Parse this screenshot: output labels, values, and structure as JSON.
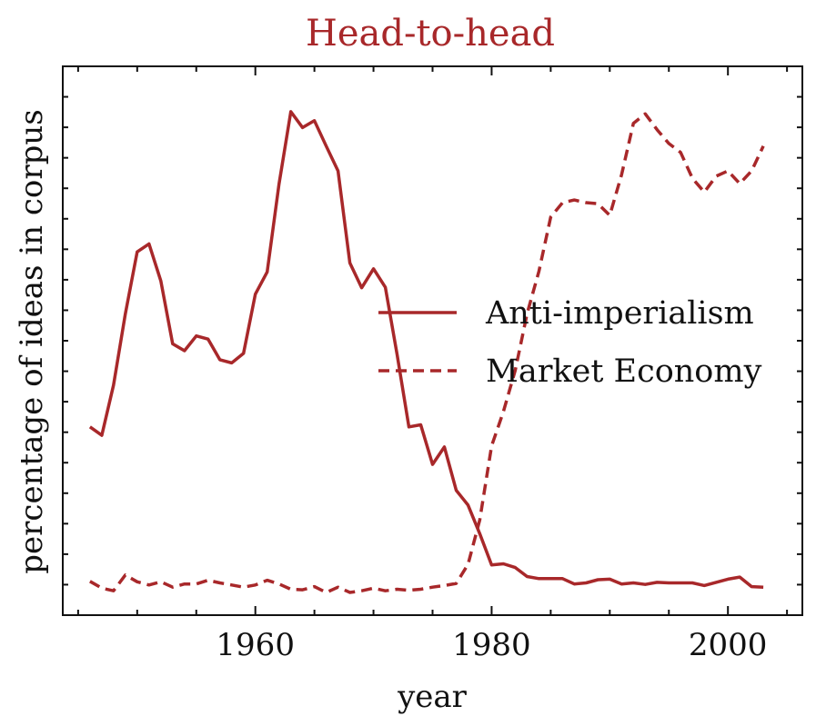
{
  "chart_data": {
    "type": "line",
    "title": "Head-to-head",
    "xlabel": "year",
    "ylabel": "percentage of ideas in corpus",
    "xlim": [
      1943.7,
      2006.3
    ],
    "ylim": [
      0,
      1
    ],
    "xticks": [
      1960,
      1980,
      2000
    ],
    "y_tick_labels_shown": false,
    "color": "#a8282a",
    "legend_position": "center-right",
    "x": [
      1946,
      1947,
      1948,
      1949,
      1950,
      1951,
      1952,
      1953,
      1954,
      1955,
      1956,
      1957,
      1958,
      1959,
      1960,
      1961,
      1962,
      1963,
      1964,
      1965,
      1966,
      1967,
      1968,
      1969,
      1970,
      1971,
      1972,
      1973,
      1974,
      1975,
      1976,
      1977,
      1978,
      1979,
      1980,
      1981,
      1982,
      1983,
      1984,
      1985,
      1986,
      1987,
      1988,
      1989,
      1990,
      1991,
      1992,
      1993,
      1994,
      1995,
      1996,
      1997,
      1998,
      1999,
      2000,
      2001,
      2002,
      2003
    ],
    "series": [
      {
        "name": "Anti-imperialism",
        "style": "solid",
        "values": [
          0.356,
          0.34,
          0.435,
          0.57,
          0.687,
          0.702,
          0.632,
          0.513,
          0.5,
          0.528,
          0.522,
          0.483,
          0.477,
          0.495,
          0.607,
          0.649,
          0.815,
          0.952,
          0.922,
          0.935,
          0.887,
          0.84,
          0.666,
          0.619,
          0.655,
          0.62,
          0.493,
          0.356,
          0.36,
          0.285,
          0.318,
          0.236,
          0.208,
          0.154,
          0.095,
          0.097,
          0.09,
          0.073,
          0.069,
          0.069,
          0.069,
          0.059,
          0.061,
          0.067,
          0.068,
          0.059,
          0.061,
          0.058,
          0.062,
          0.061,
          0.061,
          0.061,
          0.056,
          0.062,
          0.068,
          0.072,
          0.054,
          0.053
        ]
      },
      {
        "name": "Market Economy",
        "style": "dashed",
        "values": [
          0.064,
          0.051,
          0.046,
          0.076,
          0.063,
          0.057,
          0.063,
          0.053,
          0.059,
          0.059,
          0.066,
          0.061,
          0.057,
          0.053,
          0.057,
          0.066,
          0.059,
          0.049,
          0.048,
          0.054,
          0.043,
          0.053,
          0.043,
          0.046,
          0.051,
          0.046,
          0.049,
          0.047,
          0.049,
          0.053,
          0.056,
          0.06,
          0.096,
          0.18,
          0.32,
          0.385,
          0.463,
          0.57,
          0.65,
          0.753,
          0.78,
          0.785,
          0.78,
          0.778,
          0.756,
          0.833,
          0.93,
          0.948,
          0.918,
          0.892,
          0.875,
          0.826,
          0.8,
          0.83,
          0.84,
          0.816,
          0.84,
          0.887
        ]
      }
    ]
  }
}
